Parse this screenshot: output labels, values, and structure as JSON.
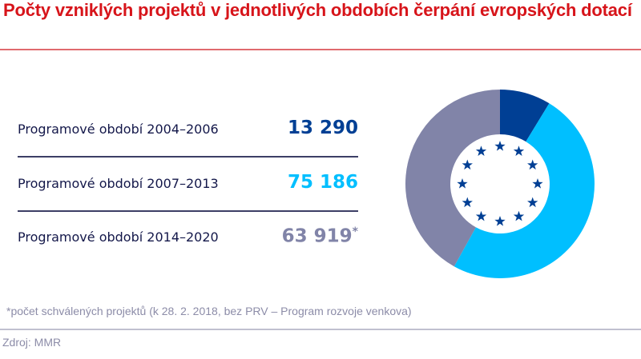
{
  "header": {
    "title": "Počty vzniklých projektů v jednotlivých obdobích čerpání evropských dotací"
  },
  "chart_data": {
    "type": "pie",
    "variant": "donut",
    "categories": [
      "Programové období 2004–2006",
      "Programové období 2007–2013",
      "Programové období 2014–2020"
    ],
    "values": [
      13290,
      75186,
      63919
    ],
    "value_labels": [
      "13 290",
      "75 186",
      "63 919"
    ],
    "value_suffixes": [
      "",
      "",
      "*"
    ],
    "colors": [
      "#003f94",
      "#00bfff",
      "#8184a8"
    ],
    "center_icon": "eu-stars-icon",
    "star_color": "#003f94",
    "start_angle": "top",
    "direction": "clockwise"
  },
  "footnote": "*počet schválených projektů (k 28. 2. 2018, bez PRV – Program rozvoje venkova)",
  "source": "Zdroj: MMR"
}
